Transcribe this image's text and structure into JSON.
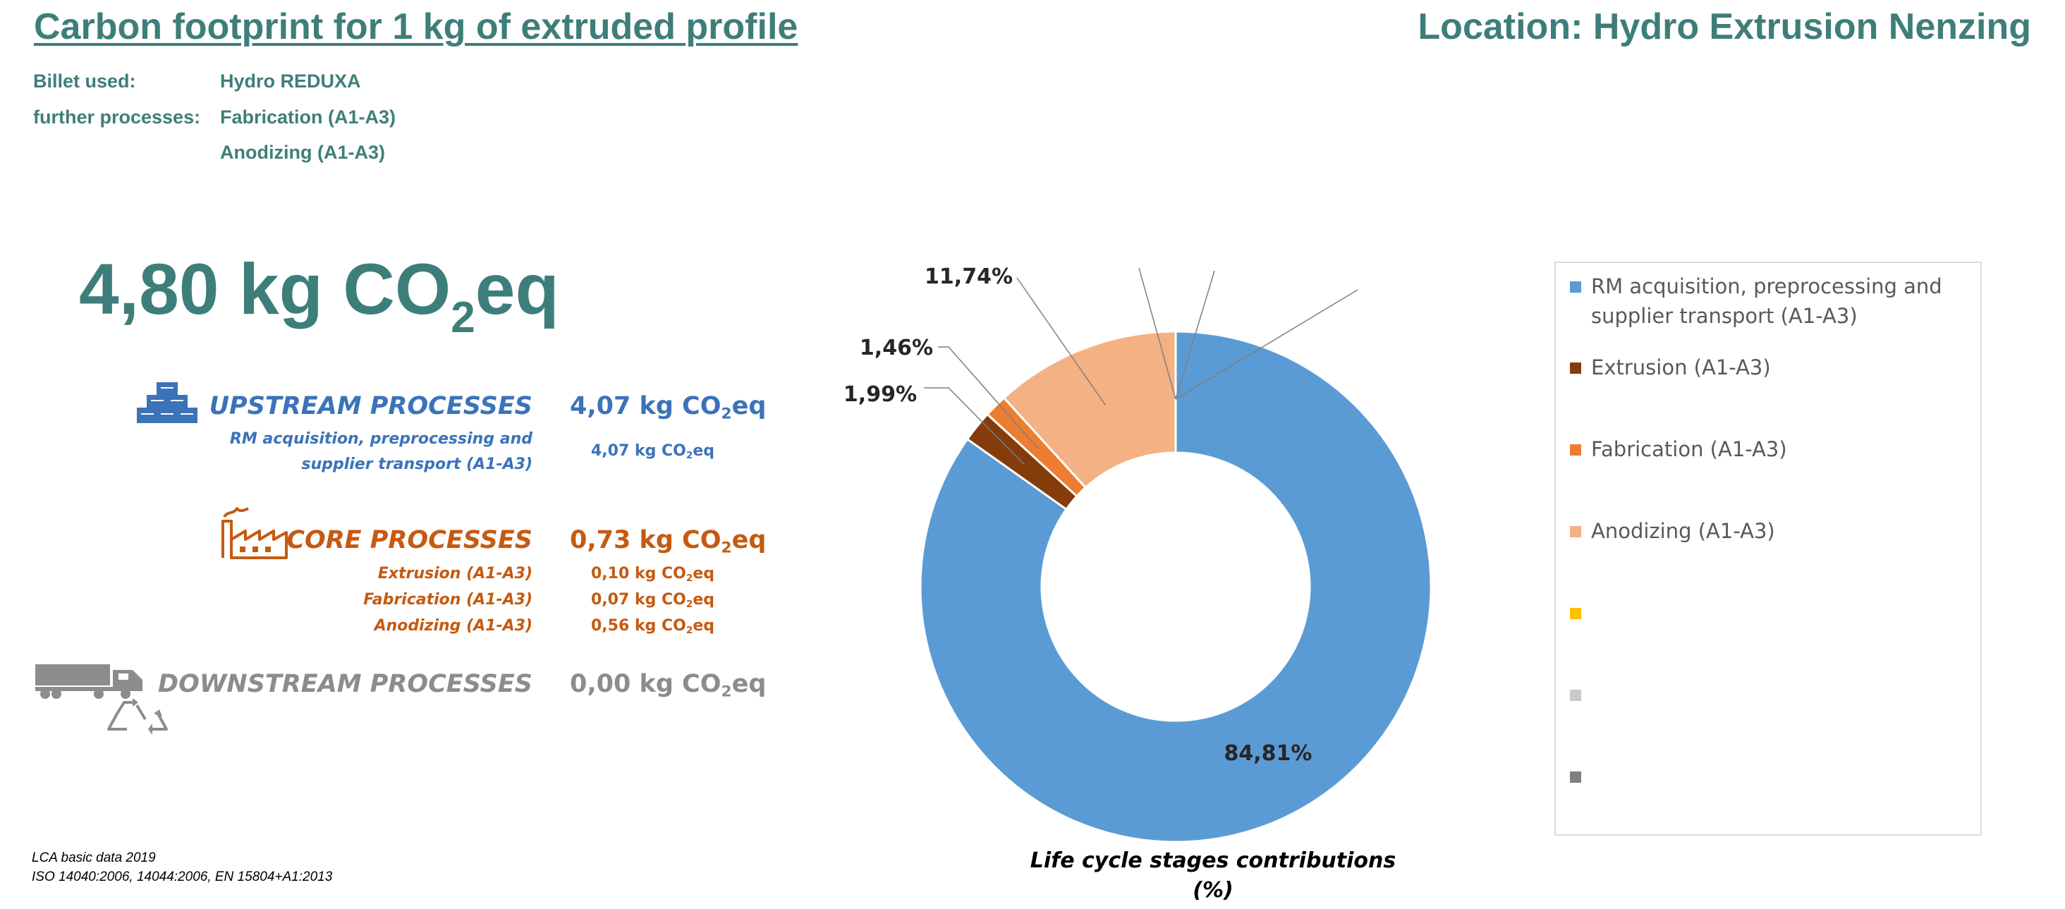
{
  "header": {
    "title": "Carbon footprint for 1 kg of extruded profile",
    "location": "Location: Hydro Extrusion Nenzing"
  },
  "info": {
    "billet_label": "Billet used:",
    "billet_value": "Hydro REDUXA",
    "further_label": "further processes:",
    "further_values": [
      "Fabrication (A1-A3)",
      "Anodizing (A1-A3)"
    ]
  },
  "total": {
    "value": "4,80 kg CO",
    "subscript": "2",
    "suffix": "eq"
  },
  "processes": {
    "upstream": {
      "title": "UPSTREAM PROCESSES",
      "value": "4,07 kg CO",
      "value_suffix": "eq",
      "sub_label_1": "RM acquisition, preprocessing and",
      "sub_label_2": "supplier transport (A1-A3)",
      "sub_value": "4,07 kg CO",
      "icon": "ingots-icon"
    },
    "core": {
      "title": "CORE PROCESSES",
      "value": "0,73 kg CO",
      "value_suffix": "eq",
      "items": [
        {
          "label": "Extrusion (A1-A3)",
          "value": "0,10 kg CO"
        },
        {
          "label": "Fabrication (A1-A3)",
          "value": "0,07 kg CO"
        },
        {
          "label": "Anodizing (A1-A3)",
          "value": "0,56 kg CO"
        }
      ],
      "icon": "factory-icon"
    },
    "downstream": {
      "title": "DOWNSTREAM PROCESSES",
      "value": "0,00 kg CO",
      "value_suffix": "eq",
      "icon": "truck-recycle-icon"
    },
    "subscript": "2",
    "suffix": "eq"
  },
  "footer": {
    "line1": "LCA basic data 2019",
    "line2": "ISO 14040:2006, 14044:2006, EN 15804+A1:2013"
  },
  "colors": {
    "teal": "#3e7e7a",
    "blue": "#5b9bd5",
    "brown": "#843c0c",
    "orange": "#ed7d31",
    "peach": "#f4b183",
    "yellow": "#ffc000",
    "lightgray": "#c9c9c9",
    "darkgray": "#7f7f7f"
  },
  "chart_data": {
    "type": "pie",
    "donut": true,
    "title": "Life cycle stages contributions (%)",
    "title_line1": "Life cycle stages contributions",
    "title_line2": "(%)",
    "legend_position": "right",
    "series": [
      {
        "name": "RM acquisition, preprocessing and supplier transport (A1-A3)",
        "value": 84.81,
        "label": "84,81%",
        "color": "#5b9bd5"
      },
      {
        "name": "Extrusion (A1-A3)",
        "value": 1.99,
        "label": "1,99%",
        "color": "#843c0c"
      },
      {
        "name": "Fabrication (A1-A3)",
        "value": 1.46,
        "label": "1,46%",
        "color": "#ed7d31"
      },
      {
        "name": "Anodizing (A1-A3)",
        "value": 11.74,
        "label": "11,74%",
        "color": "#f4b183"
      },
      {
        "name": "",
        "value": 0,
        "label": "",
        "color": "#ffc000"
      },
      {
        "name": "",
        "value": 0,
        "label": "",
        "color": "#c9c9c9"
      },
      {
        "name": "",
        "value": 0,
        "label": "",
        "color": "#7f7f7f"
      }
    ],
    "legend": [
      {
        "line1": "RM acquisition, preprocessing and",
        "line2": "supplier transport (A1-A3)",
        "color": "#5b9bd5"
      },
      {
        "line1": "Extrusion (A1-A3)",
        "line2": "",
        "color": "#843c0c"
      },
      {
        "line1": "Fabrication (A1-A3)",
        "line2": "",
        "color": "#ed7d31"
      },
      {
        "line1": "Anodizing (A1-A3)",
        "line2": "",
        "color": "#f4b183"
      },
      {
        "line1": "",
        "line2": "",
        "color": "#ffc000"
      },
      {
        "line1": "",
        "line2": "",
        "color": "#c9c9c9"
      },
      {
        "line1": "",
        "line2": "",
        "color": "#7f7f7f"
      }
    ]
  }
}
